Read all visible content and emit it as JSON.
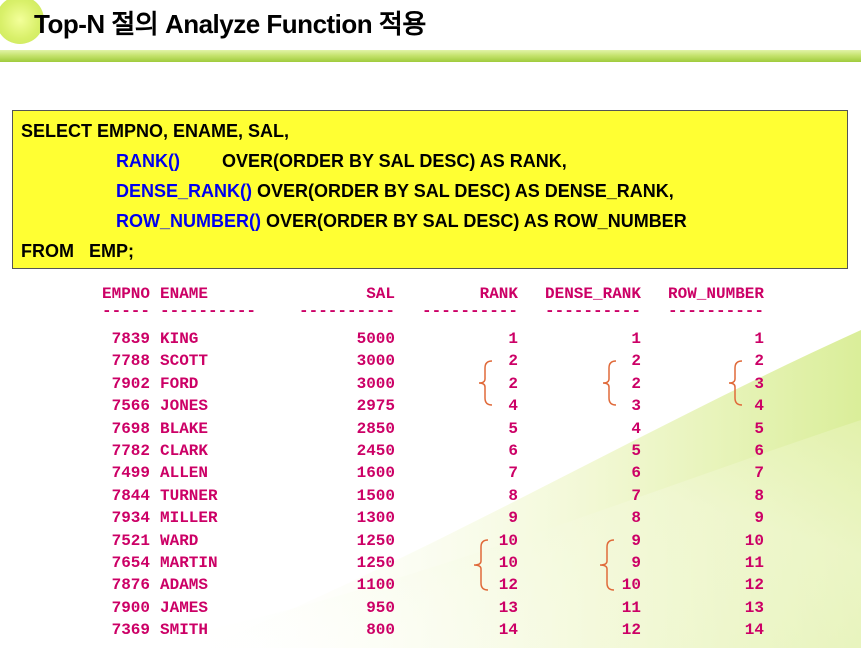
{
  "title": "Top-N 절의 Analyze Function 적용",
  "sql": {
    "line1": "SELECT EMPNO, ENAME, SAL,",
    "line2_fn": "RANK()",
    "line2_rest": "OVER(ORDER BY SAL DESC) AS RANK,",
    "line3_fn": "DENSE_RANK()",
    "line3_rest": " OVER(ORDER BY SAL DESC) AS DENSE_RANK,",
    "line4_fn": "ROW_NUMBER()",
    "line4_rest": " OVER(ORDER BY SAL DESC) AS ROW_NUMBER",
    "line5": "FROM   EMP;"
  },
  "result": {
    "headers": [
      "EMPNO",
      "ENAME",
      "SAL",
      "RANK",
      "DENSE_RANK",
      "ROW_NUMBER"
    ],
    "separators": [
      "-----",
      "----------",
      "----------",
      "----------",
      "----------",
      "----------"
    ],
    "rows": [
      [
        "7839",
        "KING",
        "5000",
        "1",
        "1",
        "1"
      ],
      [
        "7788",
        "SCOTT",
        "3000",
        "2",
        "2",
        "2"
      ],
      [
        "7902",
        "FORD",
        "3000",
        "2",
        "2",
        "3"
      ],
      [
        "7566",
        "JONES",
        "2975",
        "4",
        "3",
        "4"
      ],
      [
        "7698",
        "BLAKE",
        "2850",
        "5",
        "4",
        "5"
      ],
      [
        "7782",
        "CLARK",
        "2450",
        "6",
        "5",
        "6"
      ],
      [
        "7499",
        "ALLEN",
        "1600",
        "7",
        "6",
        "7"
      ],
      [
        "7844",
        "TURNER",
        "1500",
        "8",
        "7",
        "8"
      ],
      [
        "7934",
        "MILLER",
        "1300",
        "9",
        "8",
        "9"
      ],
      [
        "7521",
        "WARD",
        "1250",
        "10",
        "9",
        "10"
      ],
      [
        "7654",
        "MARTIN",
        "1250",
        "10",
        "9",
        "11"
      ],
      [
        "7876",
        "ADAMS",
        "1100",
        "12",
        "10",
        "12"
      ],
      [
        "7900",
        "JAMES",
        "950",
        "13",
        "11",
        "13"
      ],
      [
        "7369",
        "SMITH",
        "800",
        "14",
        "12",
        "14"
      ]
    ]
  },
  "colors": {
    "sql_background": "#ffff33",
    "function_text": "#0000ee",
    "result_text": "#cc0066",
    "brace": "#e06a3a",
    "accent_green": "#9fcb3c"
  }
}
